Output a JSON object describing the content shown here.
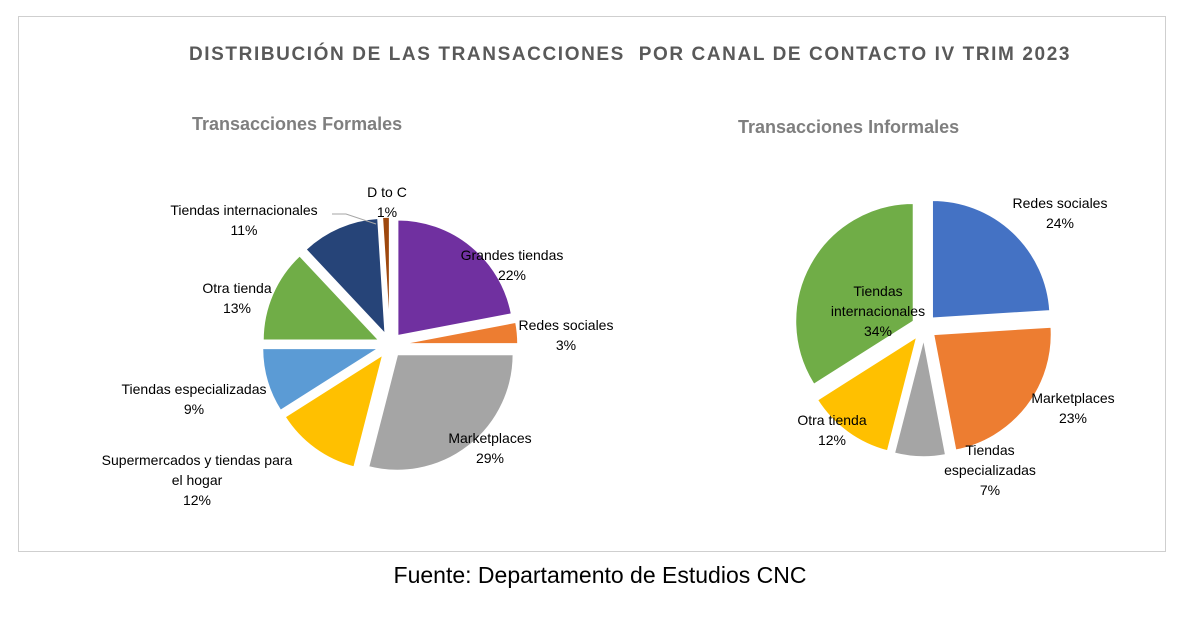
{
  "page": {
    "title": "DISTRIBUCIÓN DE LAS TRANSACCIONES  POR CANAL DE CONTACTO IV TRIM 2023",
    "source": "Fuente: Departamento de Estudios CNC"
  },
  "chart_data": [
    {
      "type": "pie",
      "title": "Transacciones Formales",
      "slices": [
        {
          "label": [
            "Grandes tiendas"
          ],
          "pct_label": "22%",
          "value": 22,
          "color": "#7030a0"
        },
        {
          "label": [
            "Redes sociales"
          ],
          "pct_label": "3%",
          "value": 3,
          "color": "#ed7d31"
        },
        {
          "label": [
            "Marketplaces"
          ],
          "pct_label": "29%",
          "value": 29,
          "color": "#a5a5a5"
        },
        {
          "label": [
            "Supermercados y tiendas para",
            "el hogar"
          ],
          "pct_label": "12%",
          "value": 12,
          "color": "#ffc000"
        },
        {
          "label": [
            "Tiendas especializadas"
          ],
          "pct_label": "9%",
          "value": 9,
          "color": "#5b9bd5"
        },
        {
          "label": [
            "Otra tienda"
          ],
          "pct_label": "13%",
          "value": 13,
          "color": "#70ad47"
        },
        {
          "label": [
            "Tiendas internacionales"
          ],
          "pct_label": "11%",
          "value": 11,
          "color": "#264478"
        },
        {
          "label": [
            "D to C"
          ],
          "pct_label": "1%",
          "value": 1,
          "color": "#9e480e"
        }
      ]
    },
    {
      "type": "pie",
      "title": "Transacciones Informales",
      "slices": [
        {
          "label": [
            "Redes sociales"
          ],
          "pct_label": "24%",
          "value": 24,
          "color": "#4472c4"
        },
        {
          "label": [
            "Marketplaces"
          ],
          "pct_label": "23%",
          "value": 23,
          "color": "#ed7d31"
        },
        {
          "label": [
            "Tiendas",
            "especializadas"
          ],
          "pct_label": "7%",
          "value": 7,
          "color": "#a5a5a5"
        },
        {
          "label": [
            "Otra tienda"
          ],
          "pct_label": "12%",
          "value": 12,
          "color": "#ffc000"
        },
        {
          "label": [
            "Tiendas",
            "internacionales"
          ],
          "pct_label": "34%",
          "value": 34,
          "color": "#70ad47"
        }
      ]
    }
  ]
}
